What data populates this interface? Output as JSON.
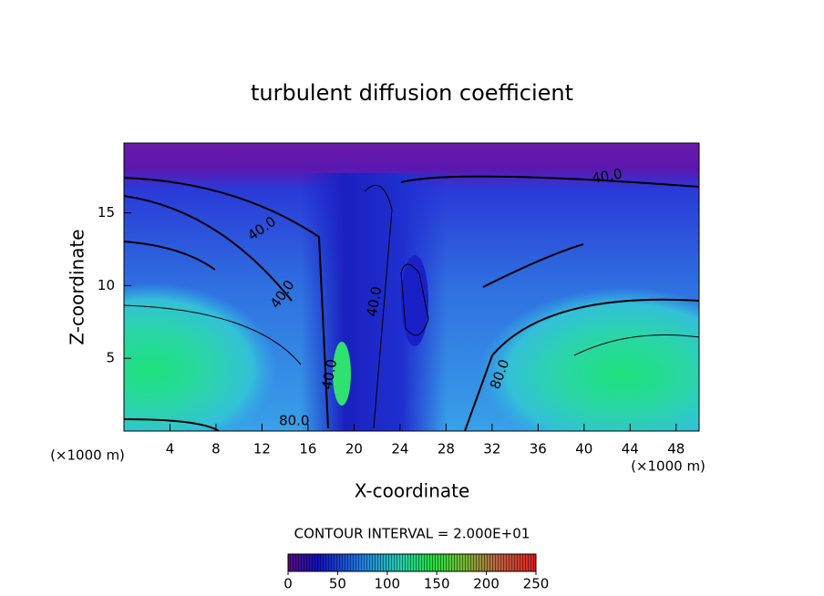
{
  "chart_data": {
    "type": "contour",
    "title": "turbulent diffusion coefficient",
    "x_label": "X-coordinate",
    "y_label": "Z-coordinate",
    "x_unit": "(×1000 m)",
    "y_unit": "(×1000 m)",
    "xlim": [
      0,
      50
    ],
    "ylim": [
      0,
      19.8
    ],
    "xticks": [
      4,
      8,
      12,
      16,
      20,
      24,
      28,
      32,
      36,
      40,
      44,
      48
    ],
    "yticks": [
      5,
      10,
      15
    ],
    "contour_interval": "CONTOUR INTERVAL = 2.000E+01",
    "contour_labels": [
      {
        "label": "40.0",
        "x": 42.0,
        "y": 17.5
      },
      {
        "label": "40.0",
        "x": 12.0,
        "y": 13.9
      },
      {
        "label": "40.0",
        "x": 13.8,
        "y": 9.4
      },
      {
        "label": "40.0",
        "x": 21.8,
        "y": 8.9
      },
      {
        "label": "40.0",
        "x": 17.9,
        "y": 3.9
      },
      {
        "label": "80.0",
        "x": 32.7,
        "y": 3.9
      },
      {
        "label": "80.0",
        "x": 14.8,
        "y": 0.7
      }
    ],
    "colorbar": {
      "lim": [
        0,
        250
      ],
      "ticks": [
        0,
        50,
        100,
        150,
        200,
        250
      ]
    }
  }
}
